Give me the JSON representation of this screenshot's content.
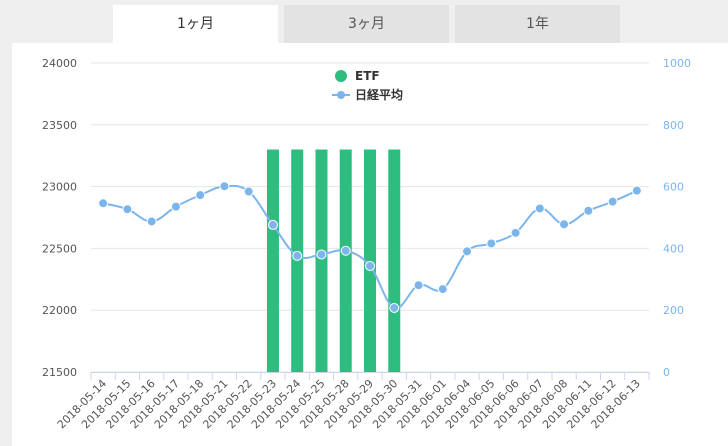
{
  "tabs": [
    {
      "label": "1ヶ月",
      "active": true
    },
    {
      "label": "3ヶ月",
      "active": false
    },
    {
      "label": "1年",
      "active": false
    }
  ],
  "colors": {
    "bar": "#2dbd7e",
    "line": "#7cb5ec",
    "grid": "#e6e6e6",
    "axis_right_text": "#7cb5ec"
  },
  "chart_data": {
    "type": "bar+line",
    "categories": [
      "2018-05-14",
      "2018-05-15",
      "2018-05-16",
      "2018-05-17",
      "2018-05-18",
      "2018-05-21",
      "2018-05-22",
      "2018-05-23",
      "2018-05-24",
      "2018-05-25",
      "2018-05-28",
      "2018-05-29",
      "2018-05-30",
      "2018-05-31",
      "2018-06-01",
      "2018-06-04",
      "2018-06-05",
      "2018-06-06",
      "2018-06-07",
      "2018-06-08",
      "2018-06-11",
      "2018-06-12",
      "2018-06-13"
    ],
    "series": [
      {
        "name": "ETF",
        "type": "bar",
        "axis": "right",
        "values": [
          0,
          0,
          0,
          0,
          0,
          0,
          0,
          720,
          720,
          720,
          720,
          720,
          720,
          0,
          0,
          0,
          0,
          0,
          0,
          0,
          0,
          0,
          0
        ]
      },
      {
        "name": "日経平均",
        "type": "line",
        "axis": "left",
        "values": [
          22865,
          22817,
          22718,
          22838,
          22931,
          23003,
          22960,
          22690,
          22440,
          22451,
          22481,
          22358,
          22018,
          22202,
          22171,
          22476,
          22540,
          22626,
          22823,
          22695,
          22805,
          22878,
          22967
        ]
      }
    ],
    "y_left": {
      "ticks": [
        "24000",
        "23500",
        "23000",
        "22500",
        "22000",
        "21500"
      ],
      "min": 21500,
      "max": 24000
    },
    "y_right": {
      "ticks": [
        "1000",
        "800",
        "600",
        "400",
        "200",
        "0"
      ],
      "min": 0,
      "max": 1000
    },
    "legend": "top-center",
    "grid": true
  }
}
